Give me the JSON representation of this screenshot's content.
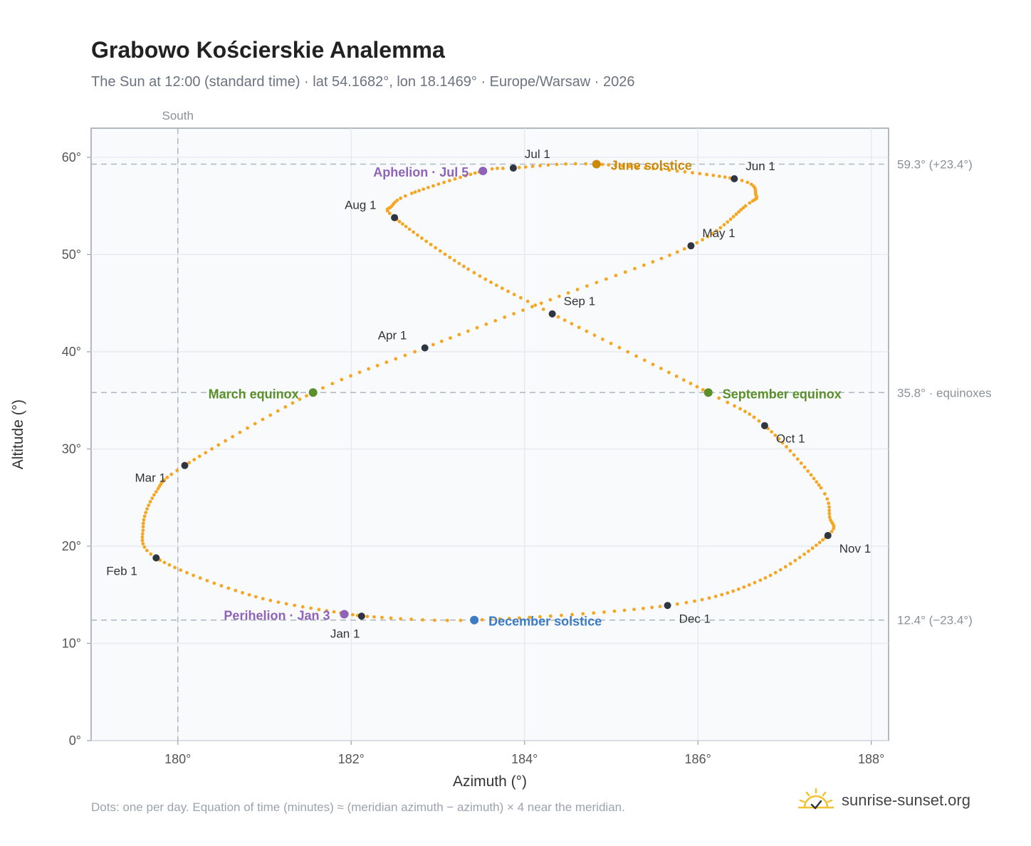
{
  "title": "Grabowo Kościerskie Analemma",
  "subtitle": "The Sun at 12:00 (standard time) · lat 54.1682°, lon 18.1469° · Europe/Warsaw · 2026",
  "footnote": "Dots: one per day. Equation of time (minutes) ≈ (meridian azimuth − azimuth) × 4 near the meridian.",
  "brand": "sunrise-sunset.org",
  "colors": {
    "path": "#f5a623",
    "month": "#2f3640",
    "equinox": "#5a8f29",
    "june_solstice": "#c98a08",
    "december_solstice": "#3b7cc4",
    "apsis": "#8e63b8",
    "reference": "#aeb6bf",
    "plot_bg": "#f8fafc"
  },
  "chart_data": {
    "type": "scatter",
    "xlabel": "Azimuth (°)",
    "ylabel": "Altitude (°)",
    "xlim": [
      179.0,
      188.2
    ],
    "ylim": [
      0,
      63
    ],
    "xticks": [
      180,
      182,
      184,
      186,
      188
    ],
    "yticks": [
      0,
      10,
      20,
      30,
      40,
      50,
      60
    ],
    "grid": true,
    "tick_suffix": "°",
    "south_line": {
      "azimuth": 180,
      "label": "South"
    },
    "reference_lines": [
      {
        "altitude": 59.3,
        "label": "59.3° (+23.4°)"
      },
      {
        "altitude": 35.8,
        "label": "35.8° · equinoxes"
      },
      {
        "altitude": 12.4,
        "label": "12.4° (−23.4°)"
      }
    ],
    "months": [
      {
        "label": "Jan 1",
        "az": 182.12,
        "alt": 12.8
      },
      {
        "label": "Feb 1",
        "az": 179.75,
        "alt": 18.8
      },
      {
        "label": "Mar 1",
        "az": 180.08,
        "alt": 28.3
      },
      {
        "label": "Apr 1",
        "az": 182.85,
        "alt": 40.4
      },
      {
        "label": "May 1",
        "az": 185.92,
        "alt": 50.9
      },
      {
        "label": "Jun 1",
        "az": 186.42,
        "alt": 57.8
      },
      {
        "label": "Jul 1",
        "az": 183.87,
        "alt": 58.9
      },
      {
        "label": "Aug 1",
        "az": 182.5,
        "alt": 53.8
      },
      {
        "label": "Sep 1",
        "az": 184.32,
        "alt": 43.9
      },
      {
        "label": "Oct 1",
        "az": 186.77,
        "alt": 32.4
      },
      {
        "label": "Nov 1",
        "az": 187.5,
        "alt": 21.1
      },
      {
        "label": "Dec 1",
        "az": 185.65,
        "alt": 13.9
      }
    ],
    "events": [
      {
        "label": "March equinox",
        "az": 181.56,
        "alt": 35.8,
        "kind": "equinox"
      },
      {
        "label": "June solstice",
        "az": 184.83,
        "alt": 59.3,
        "kind": "june_solstice"
      },
      {
        "label": "September equinox",
        "az": 186.12,
        "alt": 35.8,
        "kind": "equinox"
      },
      {
        "label": "December solstice",
        "az": 183.42,
        "alt": 12.4,
        "kind": "december_solstice"
      },
      {
        "label": "Perihelion · Jan 3",
        "az": 181.92,
        "alt": 13.0,
        "kind": "apsis"
      },
      {
        "label": "Aphelion · Jul 5",
        "az": 183.52,
        "alt": 58.6,
        "kind": "apsis"
      }
    ],
    "path_keypoints": [
      [
        0,
        182.12,
        12.8
      ],
      [
        15,
        180.9,
        14.8
      ],
      [
        31,
        179.75,
        18.8
      ],
      [
        40,
        179.6,
        22.0
      ],
      [
        50,
        179.75,
        25.6
      ],
      [
        59,
        180.08,
        28.3
      ],
      [
        78,
        181.56,
        35.8
      ],
      [
        90,
        182.85,
        40.4
      ],
      [
        105,
        184.4,
        45.7
      ],
      [
        120,
        185.92,
        50.9
      ],
      [
        135,
        186.55,
        55.0
      ],
      [
        142,
        186.67,
        56.1
      ],
      [
        151,
        186.42,
        57.8
      ],
      [
        171,
        184.83,
        59.3
      ],
      [
        181,
        183.87,
        58.9
      ],
      [
        185,
        183.52,
        58.6
      ],
      [
        200,
        182.7,
        56.3
      ],
      [
        206,
        182.47,
        55.0
      ],
      [
        212,
        182.5,
        53.8
      ],
      [
        230,
        183.35,
        48.5
      ],
      [
        243,
        184.32,
        43.9
      ],
      [
        264,
        186.12,
        35.8
      ],
      [
        273,
        186.77,
        32.4
      ],
      [
        290,
        187.42,
        26.0
      ],
      [
        297,
        187.52,
        23.0
      ],
      [
        304,
        187.5,
        21.1
      ],
      [
        320,
        186.72,
        16.5
      ],
      [
        334,
        185.65,
        13.9
      ],
      [
        354,
        183.42,
        12.4
      ],
      [
        365,
        182.12,
        12.8
      ]
    ]
  }
}
